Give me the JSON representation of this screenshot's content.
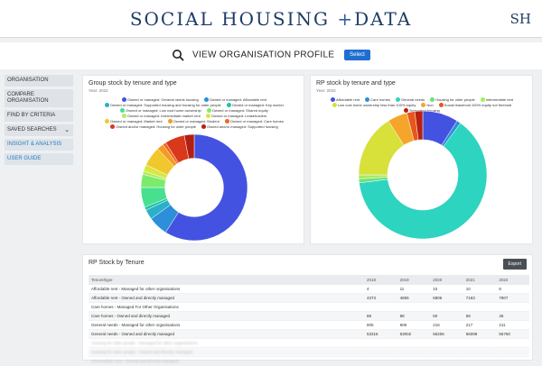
{
  "header": {
    "title_part1": "SOCIAL HOUSING ",
    "title_plus": "+",
    "title_part2": "DATA",
    "initials": "SH"
  },
  "subbar": {
    "label": "VIEW ORGANISATION PROFILE",
    "select_label": "Select"
  },
  "sidebar": {
    "items": [
      {
        "label": "ORGANISATION"
      },
      {
        "label": "COMPARE ORGANISATION"
      },
      {
        "label": "FIND BY CRITERIA"
      },
      {
        "label": "SAVED SEARCHES"
      },
      {
        "label": "INSIGHT & ANALYSIS"
      },
      {
        "label": "USER GUIDE"
      }
    ]
  },
  "chart_data": [
    {
      "type": "pie",
      "title": "Group stock by tenure and type",
      "subtitle": "Year: 2022",
      "categories": [
        "Owned or managed: General needs housing",
        "Owned or managed: Affordable rent",
        "Owned or managed: Supported housing and housing for older people",
        "Owned or managed: Key worker",
        "Owned or managed: Low cost home ownership",
        "Owned or managed: Shared equity",
        "Owned or managed: Intermediate market rent",
        "Owned or managed: Leaseholders",
        "Owned or managed: Market rent",
        "Owned or managed: Student",
        "Owned or managed: Care homes",
        "Owned and/or managed: Housing for older people",
        "Owned and/or managed: Supported housing"
      ],
      "colors": [
        "#4352e0",
        "#2d8fd9",
        "#2ab0c9",
        "#21c4a6",
        "#47e08f",
        "#7ceb6c",
        "#b1ed5a",
        "#d9e73f",
        "#f0c72c",
        "#f59a22",
        "#f0661c",
        "#d9381b",
        "#b21f12"
      ],
      "values": [
        59,
        6,
        3,
        1,
        6,
        4,
        1,
        2,
        6,
        2,
        1,
        6,
        3
      ]
    },
    {
      "type": "pie",
      "title": "RP stock by tenure and type",
      "subtitle": "Year: 2022",
      "categories": [
        "Affordable rent",
        "Care homes",
        "General needs",
        "Housing for older people",
        "Intermediate rent",
        "Low cost home ownership less than 100% equity",
        "Non",
        "Social leasehold 100% equity not freehold",
        "Supported housing"
      ],
      "colors": [
        "#4352e0",
        "#2d8fd9",
        "#2dd4c0",
        "#6ee07a",
        "#a4ec5e",
        "#d8e03a",
        "#f5a52a",
        "#e8561c",
        "#b8200f"
      ],
      "values": [
        9,
        1,
        63,
        1,
        1,
        16,
        5,
        2,
        2
      ]
    }
  ],
  "table": {
    "title": "RP Stock by Tenure",
    "export_label": "Export",
    "columns": [
      "Tenure/type",
      "2018",
      "2019",
      "2020",
      "2021",
      "2022"
    ],
    "rows": [
      [
        "Affordable rent - Managed for other organisations",
        "4",
        "11",
        "10",
        "10",
        "8"
      ],
      [
        "Affordable rent - Owned and directly managed",
        "4373",
        "4855",
        "6806",
        "7163",
        "7807"
      ],
      [
        "Care homes - Managed For Other Organisations",
        "",
        "",
        "",
        "",
        ""
      ],
      [
        "Care homes - Owned and directly managed",
        "88",
        "88",
        "50",
        "58",
        "45"
      ],
      [
        "General needs - Managed for other organisations",
        "805",
        "909",
        "216",
        "217",
        "211"
      ],
      [
        "General needs - Owned and directly managed",
        "53316",
        "53002",
        "56206",
        "56099",
        "56760"
      ],
      [
        "Housing for older people - Managed for other organisations",
        "",
        "",
        "",
        "",
        ""
      ],
      [
        "Housing for older people - Owned and directly managed",
        "",
        "",
        "",
        "",
        ""
      ],
      [
        "Intermediate rent - Owned and directly managed",
        "",
        "",
        "",
        "",
        ""
      ]
    ]
  }
}
